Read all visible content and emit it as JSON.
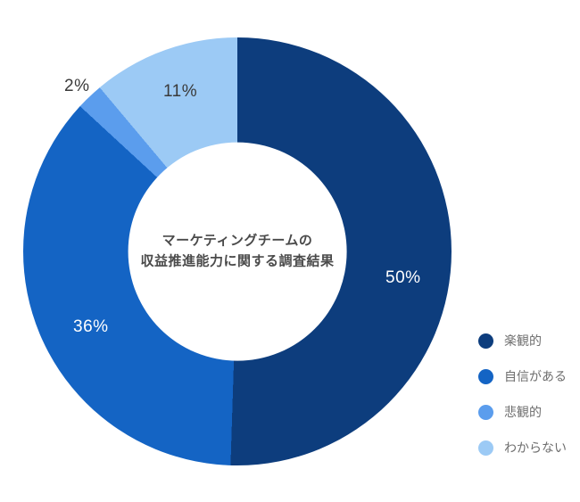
{
  "chart_data": {
    "type": "pie",
    "donut": true,
    "title": "マーケティングチームの収益推進能力に関する調査結果",
    "title_lines": [
      "マーケティングチームの",
      "収益推進能力に関する調査結果"
    ],
    "legend_position": "right",
    "start_angle_deg": 0,
    "direction": "clockwise",
    "segments": [
      {
        "label": "楽観的",
        "value": 50,
        "display": "50%",
        "color": "#0d3d7d"
      },
      {
        "label": "自信がある",
        "value": 36,
        "display": "36%",
        "color": "#1464c4"
      },
      {
        "label": "悲観的",
        "value": 2,
        "display": "2%",
        "color": "#5b9ded"
      },
      {
        "label": "わからない",
        "value": 11,
        "display": "11%",
        "color": "#9ccaf5"
      }
    ]
  }
}
